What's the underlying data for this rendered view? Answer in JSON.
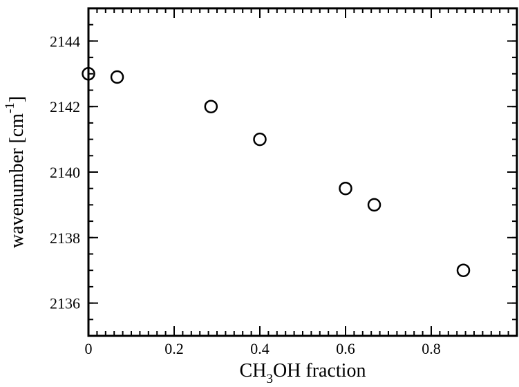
{
  "chart_data": {
    "type": "scatter",
    "title": "",
    "xlabel": {
      "prefix": "CH",
      "sub": "3",
      "suffix": "OH fraction"
    },
    "ylabel": {
      "prefix": "wavenumber [cm",
      "sup": "-1",
      "suffix": "]"
    },
    "xlim": [
      0,
      1.0
    ],
    "ylim": [
      2135,
      2145
    ],
    "x_ticks": [
      0,
      0.2,
      0.4,
      0.6,
      0.8
    ],
    "x_tick_labels": [
      "0",
      "0.2",
      "0.4",
      "0.6",
      "0.8"
    ],
    "y_ticks": [
      2136,
      2138,
      2140,
      2142,
      2144
    ],
    "y_tick_labels": [
      "2136",
      "2138",
      "2140",
      "2142",
      "2144"
    ],
    "grid": false,
    "marker": "open-circle",
    "series": [
      {
        "x": [
          0.0,
          0.067,
          0.286,
          0.4,
          0.6,
          0.667,
          0.875
        ],
        "y": [
          2143.0,
          2142.9,
          2142.0,
          2141.0,
          2139.5,
          2139.0,
          2137.0
        ]
      }
    ]
  }
}
